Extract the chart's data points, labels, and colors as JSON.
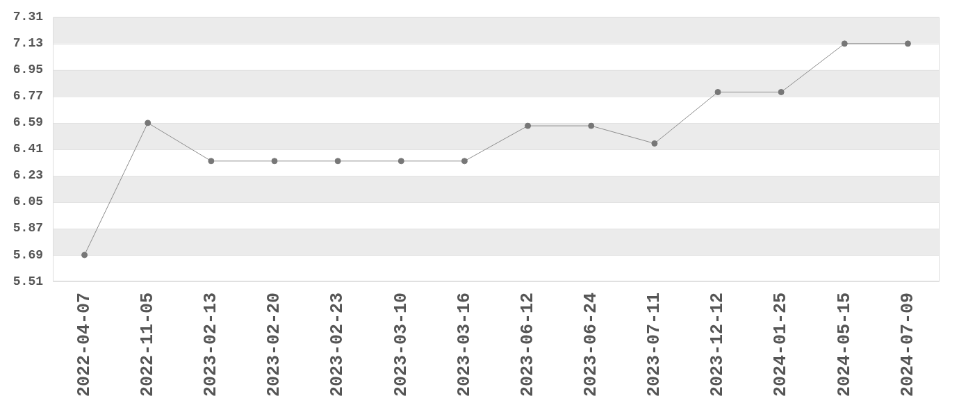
{
  "chart_data": {
    "type": "line",
    "categories": [
      "2022-04-07",
      "2022-11-05",
      "2023-02-13",
      "2023-02-20",
      "2023-02-23",
      "2023-03-10",
      "2023-03-16",
      "2023-06-12",
      "2023-06-24",
      "2023-07-11",
      "2023-12-12",
      "2024-01-25",
      "2024-05-15",
      "2024-07-09"
    ],
    "series": [
      {
        "color": "#777777",
        "values": [
          5.69,
          6.59,
          6.33,
          6.33,
          6.33,
          6.33,
          6.33,
          6.57,
          6.57,
          6.45,
          6.8,
          6.8,
          7.13,
          7.13
        ]
      }
    ],
    "ylim": [
      5.51,
      7.31
    ],
    "yticks": [
      5.51,
      5.69,
      5.87,
      6.05,
      6.23,
      6.41,
      6.59,
      6.77,
      6.95,
      7.13,
      7.31
    ],
    "grid": "y",
    "legend": false,
    "marker": "circle",
    "line_style": "solid"
  }
}
